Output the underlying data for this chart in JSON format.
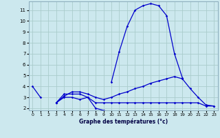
{
  "xlabel": "Graphe des températures (°c)",
  "background_color": "#cce8ee",
  "grid_color": "#aacccc",
  "line_color": "#0000cc",
  "x": [
    0,
    1,
    2,
    3,
    4,
    5,
    6,
    7,
    8,
    9,
    10,
    11,
    12,
    13,
    14,
    15,
    16,
    17,
    18,
    19,
    20,
    21,
    22,
    23
  ],
  "line1_y": [
    4.0,
    3.0,
    null,
    null,
    null,
    null,
    null,
    null,
    null,
    null,
    null,
    null,
    null,
    null,
    null,
    null,
    null,
    null,
    null,
    null,
    null,
    null,
    null,
    null
  ],
  "line2_y": [
    null,
    null,
    null,
    2.5,
    3.3,
    3.3,
    3.3,
    3.0,
    2.0,
    1.8,
    null,
    null,
    null,
    null,
    null,
    null,
    null,
    null,
    null,
    null,
    null,
    null,
    null,
    null
  ],
  "line3_y": [
    null,
    null,
    null,
    2.5,
    3.1,
    3.5,
    3.5,
    3.3,
    3.0,
    2.8,
    3.0,
    3.3,
    3.5,
    3.8,
    4.0,
    4.3,
    4.5,
    4.7,
    4.9,
    4.7,
    3.8,
    3.0,
    2.3,
    2.2
  ],
  "line4_y": [
    null,
    null,
    null,
    2.5,
    3.0,
    3.0,
    2.8,
    3.0,
    2.5,
    2.5,
    2.5,
    2.5,
    2.5,
    2.5,
    2.5,
    2.5,
    2.5,
    2.5,
    2.5,
    2.5,
    2.5,
    2.5,
    2.2,
    2.2
  ],
  "line5_y": [
    null,
    null,
    null,
    null,
    null,
    null,
    null,
    null,
    null,
    null,
    4.4,
    7.2,
    9.5,
    11.0,
    11.4,
    11.6,
    11.4,
    10.5,
    7.0,
    4.8,
    null,
    null,
    null,
    null
  ],
  "ylim_min": 1.8,
  "ylim_max": 11.8,
  "xlim_min": -0.5,
  "xlim_max": 23.5,
  "yticks": [
    2,
    3,
    4,
    5,
    6,
    7,
    8,
    9,
    10,
    11
  ],
  "xticks": [
    0,
    1,
    2,
    3,
    4,
    5,
    6,
    7,
    8,
    9,
    10,
    11,
    12,
    13,
    14,
    15,
    16,
    17,
    18,
    19,
    20,
    21,
    22,
    23
  ]
}
